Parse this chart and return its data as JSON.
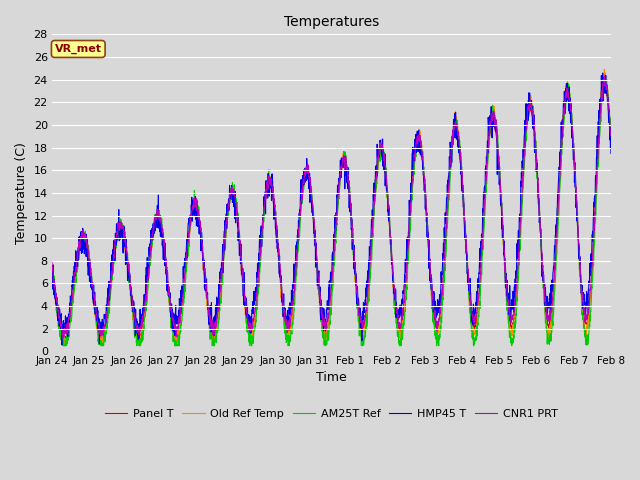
{
  "title": "Temperatures",
  "xlabel": "Time",
  "ylabel": "Temperature (C)",
  "ylim": [
    0,
    28
  ],
  "fig_bg_color": "#d8d8d8",
  "plot_bg_color": "#d8d8d8",
  "annotation_text": "VR_met",
  "annotation_color": "#8b0000",
  "annotation_bg": "#ffff90",
  "annotation_edge": "#8b4513",
  "legend_entries": [
    "Panel T",
    "Old Ref Temp",
    "AM25T Ref",
    "HMP45 T",
    "CNR1 PRT"
  ],
  "line_colors": [
    "#dd0000",
    "#ff8800",
    "#00cc00",
    "#0000ee",
    "#bb00bb"
  ],
  "xtick_labels": [
    "Jan 24",
    "Jan 25",
    "Jan 26",
    "Jan 27",
    "Jan 28",
    "Jan 29",
    "Jan 30",
    "Jan 31",
    "Feb 1",
    "Feb 2",
    "Feb 3",
    "Feb 4",
    "Feb 5",
    "Feb 6",
    "Feb 7",
    "Feb 8"
  ],
  "ytick_vals": [
    0,
    2,
    4,
    6,
    8,
    10,
    12,
    14,
    16,
    18,
    20,
    22,
    24,
    26,
    28
  ],
  "n_days": 15,
  "pts_per_day": 144,
  "seed": 42,
  "linewidth": 0.8,
  "figwidth": 6.4,
  "figheight": 4.8,
  "dpi": 100
}
